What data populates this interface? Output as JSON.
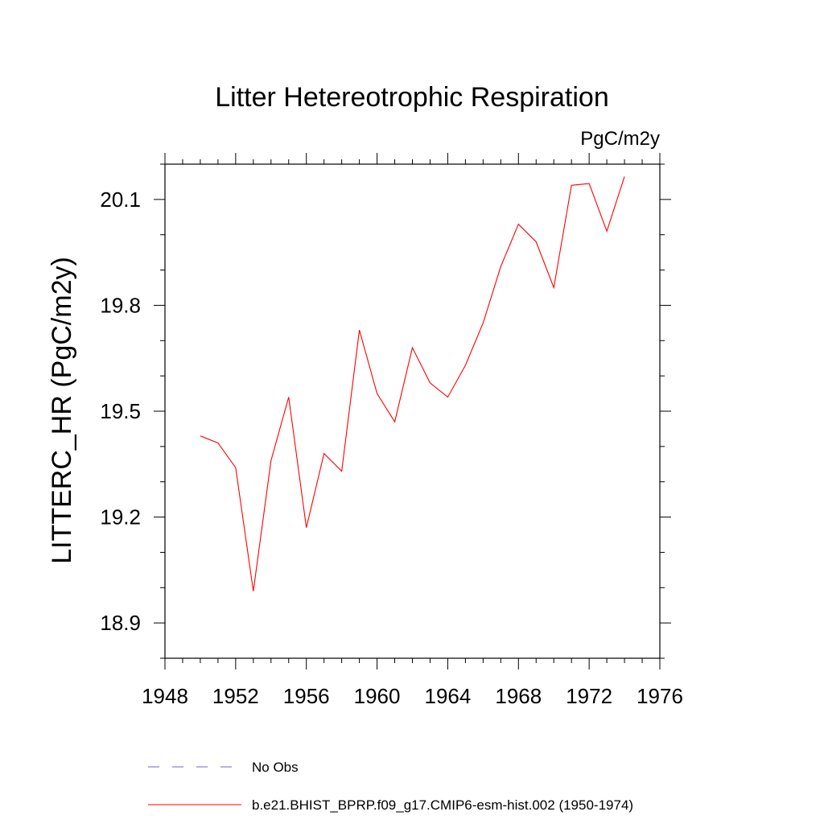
{
  "chart_data": {
    "type": "line",
    "title": "Litter Hetereotrophic Respiration",
    "units_label": "PgC/m2y",
    "ylabel": "LITTERC_HR  (PgC/m2y)",
    "xlabel": "",
    "xlim": [
      1948,
      1976
    ],
    "ylim": [
      18.8,
      20.2
    ],
    "x_ticks": [
      1948,
      1952,
      1956,
      1960,
      1964,
      1968,
      1972,
      1976
    ],
    "x_tick_labels": [
      "1948",
      "1952",
      "1956",
      "1960",
      "1964",
      "1968",
      "1972",
      "1976"
    ],
    "y_ticks": [
      18.9,
      19.2,
      19.5,
      19.8,
      20.1
    ],
    "y_tick_labels": [
      "18.9",
      "19.2",
      "19.5",
      "19.8",
      "20.1"
    ],
    "grid": false,
    "legend_position": "bottom",
    "series": [
      {
        "name": "b.e21.BHIST_BPRP.f09_g17.CMIP6-esm-hist.002 (1950-1974)",
        "color": "#ff0000",
        "style": "solid",
        "x": [
          1950,
          1951,
          1952,
          1953,
          1954,
          1955,
          1956,
          1957,
          1958,
          1959,
          1960,
          1961,
          1962,
          1963,
          1964,
          1965,
          1966,
          1967,
          1968,
          1969,
          1970,
          1971,
          1972,
          1973,
          1974
        ],
        "y": [
          19.43,
          19.41,
          19.34,
          18.99,
          19.36,
          19.54,
          19.17,
          19.38,
          19.33,
          19.73,
          19.55,
          19.47,
          19.68,
          19.58,
          19.54,
          19.63,
          19.75,
          19.91,
          20.03,
          19.98,
          19.85,
          20.14,
          20.145,
          20.01,
          20.165
        ]
      }
    ],
    "legend": [
      {
        "label": "No Obs",
        "color": "#8c82c8",
        "style": "dashed"
      },
      {
        "label": "b.e21.BHIST_BPRP.f09_g17.CMIP6-esm-hist.002 (1950-1974)",
        "color": "#ff0000",
        "style": "solid"
      }
    ]
  }
}
